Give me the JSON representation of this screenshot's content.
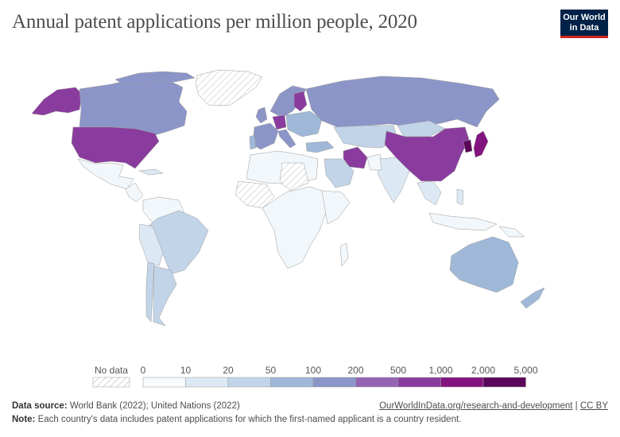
{
  "title": "Annual patent applications per million people, 2020",
  "logo": {
    "line1": "Our World",
    "line2": "in Data"
  },
  "legend": {
    "no_data_label": "No data",
    "ticks": [
      "0",
      "10",
      "20",
      "50",
      "100",
      "200",
      "500",
      "1,000",
      "2,000",
      "5,000"
    ],
    "colors": [
      "#f7fbfd",
      "#dce9f4",
      "#c2d4e8",
      "#9fb8d8",
      "#8c95c8",
      "#9563b4",
      "#8a3c9e",
      "#83137e",
      "#5a0659"
    ]
  },
  "footer": {
    "source_label": "Data source:",
    "source_text": "World Bank (2022); United Nations (2022)",
    "note_label": "Note:",
    "note_text": "Each country's data includes patent applications for which the first-named applicant is a country resident.",
    "link_text": "OurWorldInData.org/research-and-development",
    "separator": "|",
    "license": "CC BY"
  }
}
